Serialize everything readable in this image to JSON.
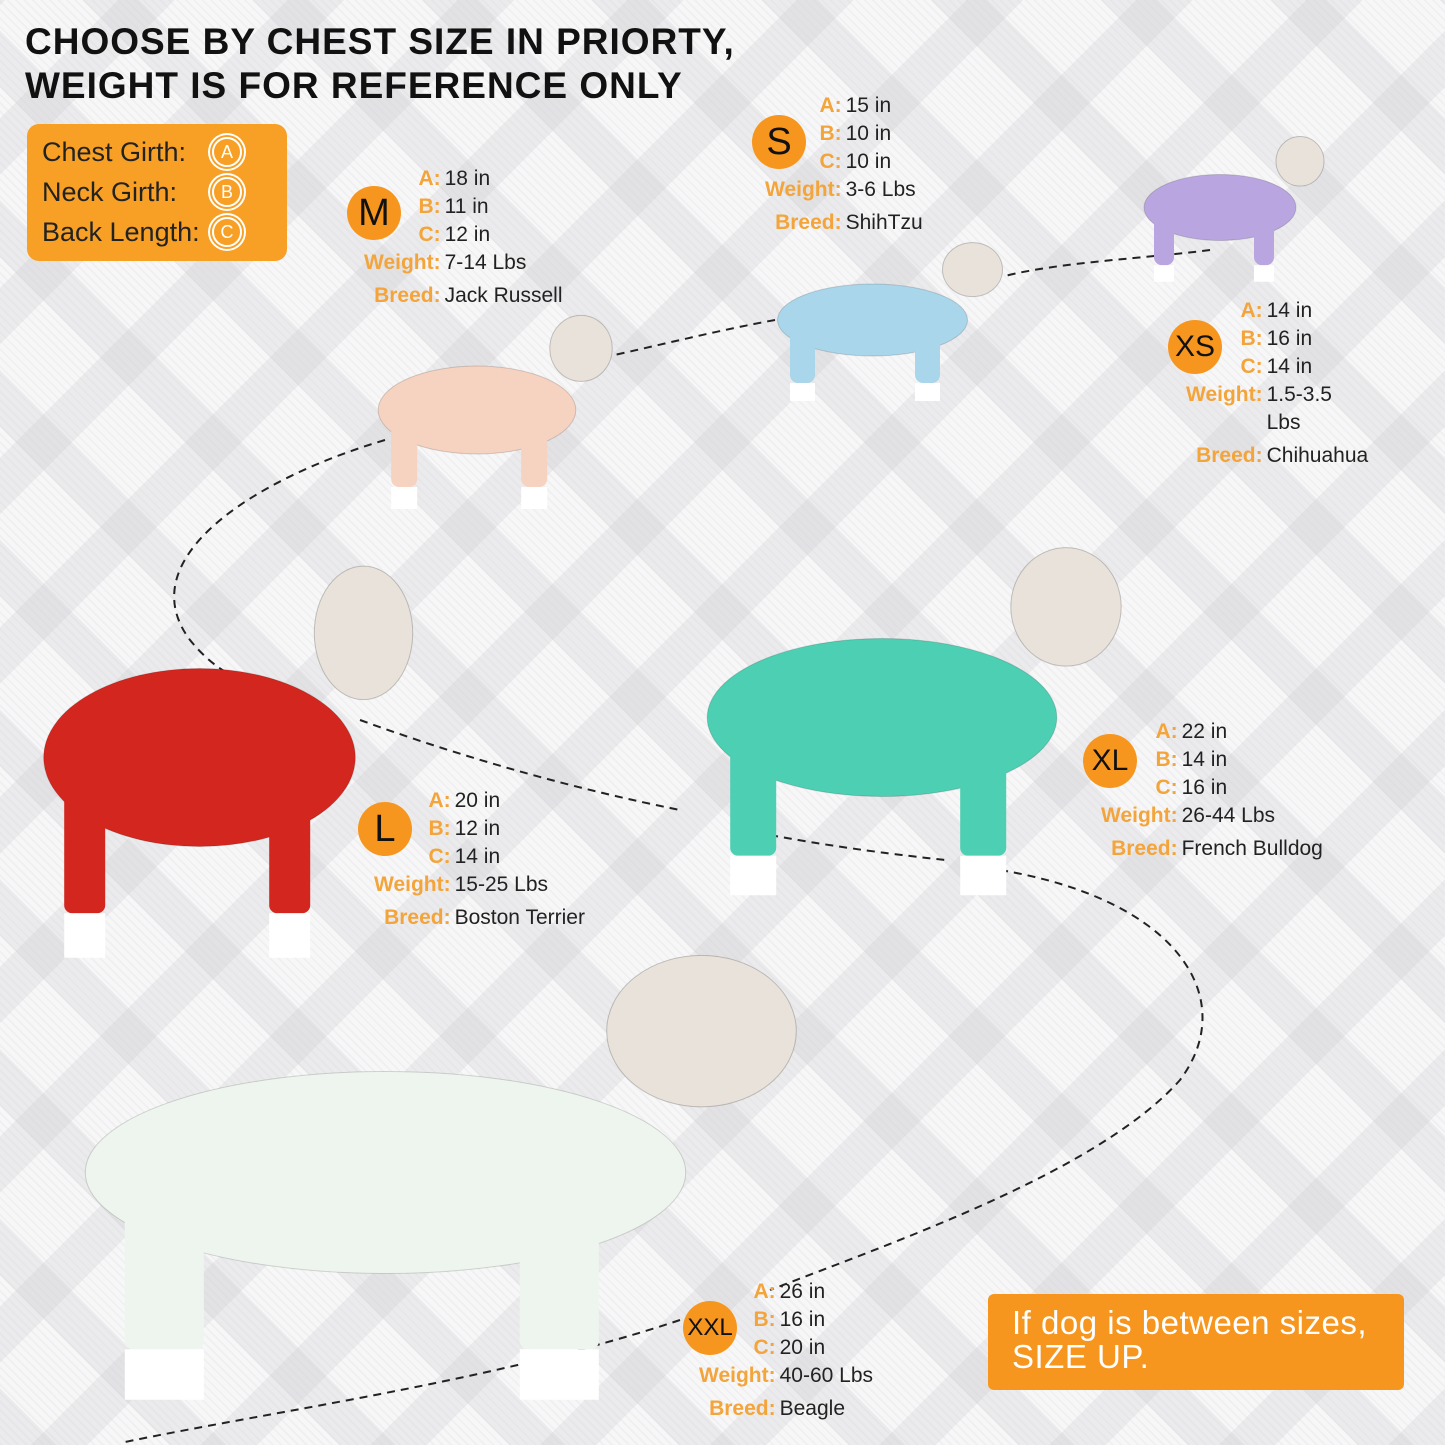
{
  "headline": {
    "line1": "CHOOSE BY CHEST SIZE IN PRIORTY,",
    "line2": "WEIGHT IS FOR REFERENCE ONLY"
  },
  "legend": [
    {
      "label": "Chest Girth:",
      "code": "A"
    },
    {
      "label": "Neck Girth:",
      "code": "B"
    },
    {
      "label": "Back Length:",
      "code": "C"
    }
  ],
  "labels": {
    "a": "A:",
    "b": "B:",
    "c": "C:",
    "weight": "Weight:",
    "breed": "Breed:"
  },
  "sizes": [
    {
      "size": "S",
      "a": "15 in",
      "b": "10 in",
      "c": "10 in",
      "weight": "3-6 Lbs",
      "breed": "ShihTzu",
      "pajama_color": "#a9d6ea"
    },
    {
      "size": "M",
      "a": "18 in",
      "b": "11 in",
      "c": "12 in",
      "weight": "7-14 Lbs",
      "breed": "Jack Russell",
      "pajama_color": "#f6d2c0"
    },
    {
      "size": "XS",
      "a": "14 in",
      "b": "16 in",
      "c": "14 in",
      "weight": "1.5-3.5 Lbs",
      "breed": "Chihuahua",
      "pajama_color": "#b9a6e0"
    },
    {
      "size": "L",
      "a": "20 in",
      "b": "12 in",
      "c": "14 in",
      "weight": "15-25 Lbs",
      "breed": "Boston Terrier",
      "pajama_color": "#d3261f"
    },
    {
      "size": "XL",
      "a": "22 in",
      "b": "14 in",
      "c": "16 in",
      "weight": "26-44 Lbs",
      "breed": "French Bulldog",
      "pajama_color": "#4ccfb2"
    },
    {
      "size": "XXL",
      "a": "26 in",
      "b": "16 in",
      "c": "20 in",
      "weight": "40-60 Lbs",
      "breed": "Beagle",
      "pajama_color": "#eef5ee"
    }
  ],
  "note": {
    "line1": "If dog is between sizes,",
    "line2": "SIZE UP."
  },
  "colors": {
    "accent": "#f7961e",
    "label": "#f3a43a",
    "text": "#222222"
  }
}
